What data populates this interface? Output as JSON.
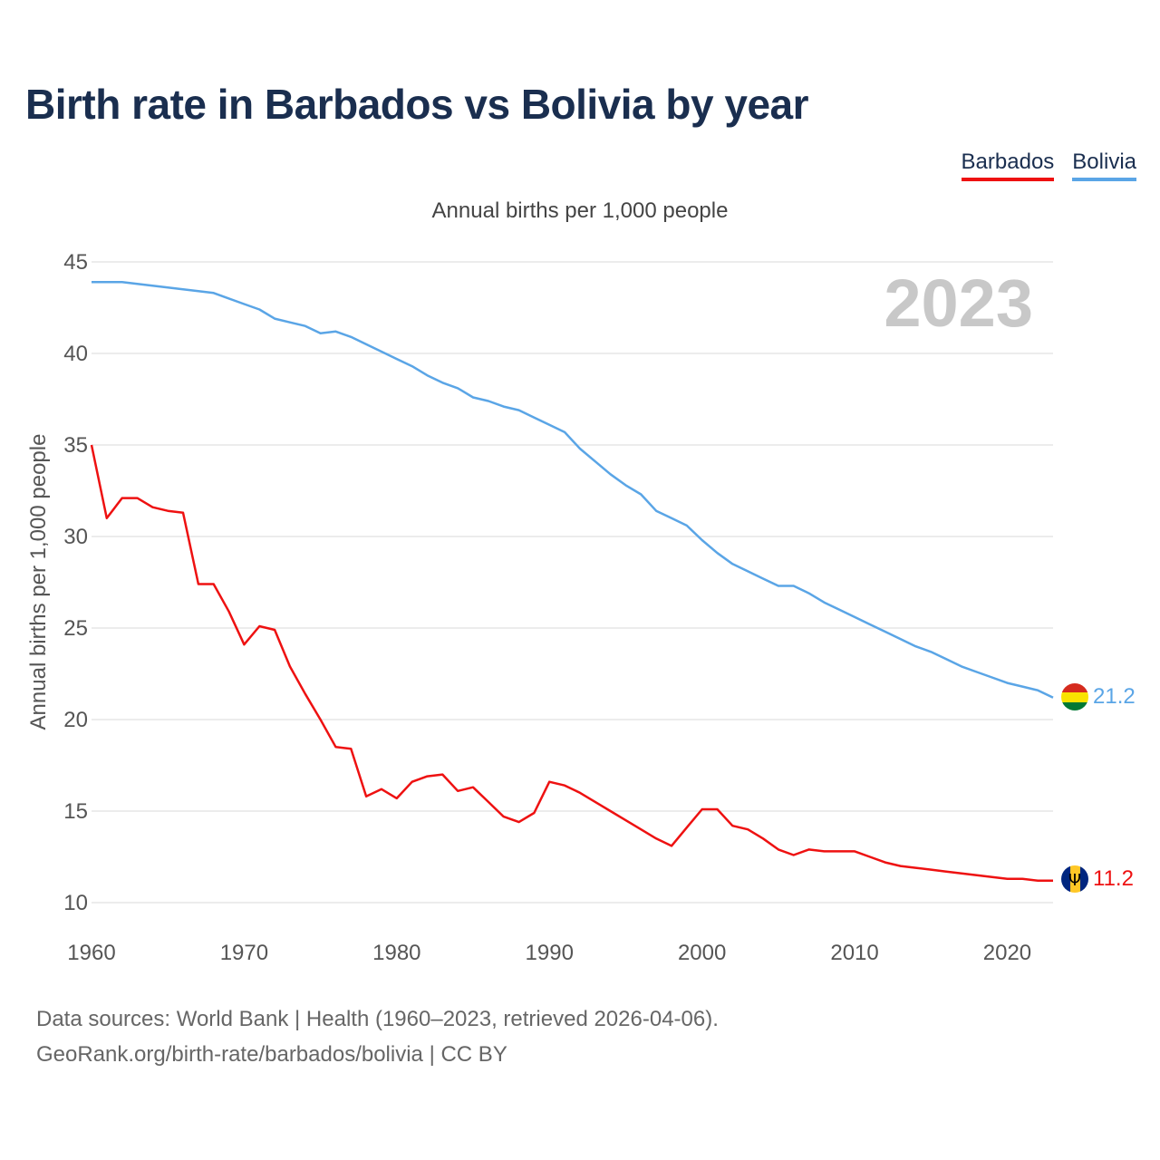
{
  "title": "Birth rate in Barbados vs Bolivia by year",
  "subtitle": "Annual births per 1,000 people",
  "year_watermark": "2023",
  "legend": [
    {
      "label": "Barbados",
      "color": "#ee1111"
    },
    {
      "label": "Bolivia",
      "color": "#5aa5e6"
    }
  ],
  "footer": {
    "line1": "Data sources: World Bank | Health (1960–2023, retrieved 2026-04-06).",
    "line2": "GeoRank.org/birth-rate/barbados/bolivia | CC BY"
  },
  "chart_data": {
    "type": "line",
    "title": "Birth rate in Barbados vs Bolivia by year",
    "xlabel": "",
    "ylabel": "Annual births per 1,000 people",
    "xlim": [
      1960,
      2023
    ],
    "ylim": [
      10,
      45
    ],
    "x_ticks": [
      1960,
      1970,
      1980,
      1990,
      2000,
      2010,
      2020
    ],
    "y_ticks": [
      10,
      15,
      20,
      25,
      30,
      35,
      40,
      45
    ],
    "grid": true,
    "legend_position": "top-right",
    "x": [
      1960,
      1961,
      1962,
      1963,
      1964,
      1965,
      1966,
      1967,
      1968,
      1969,
      1970,
      1971,
      1972,
      1973,
      1974,
      1975,
      1976,
      1977,
      1978,
      1979,
      1980,
      1981,
      1982,
      1983,
      1984,
      1985,
      1986,
      1987,
      1988,
      1989,
      1990,
      1991,
      1992,
      1993,
      1994,
      1995,
      1996,
      1997,
      1998,
      1999,
      2000,
      2001,
      2002,
      2003,
      2004,
      2005,
      2006,
      2007,
      2008,
      2009,
      2010,
      2011,
      2012,
      2013,
      2014,
      2015,
      2016,
      2017,
      2018,
      2019,
      2020,
      2021,
      2022,
      2023
    ],
    "series": [
      {
        "name": "Barbados",
        "color": "#ee1111",
        "end_label": "11.2",
        "values": [
          35.0,
          31.0,
          32.1,
          32.1,
          31.6,
          31.4,
          31.3,
          27.4,
          27.4,
          25.9,
          24.1,
          25.1,
          24.9,
          22.9,
          21.4,
          20.0,
          18.5,
          18.4,
          15.8,
          16.2,
          15.7,
          16.6,
          16.9,
          17.0,
          16.1,
          16.3,
          15.5,
          14.7,
          14.4,
          14.9,
          16.6,
          16.4,
          16.0,
          15.5,
          15.0,
          14.5,
          14.0,
          13.5,
          13.1,
          14.1,
          15.1,
          15.1,
          14.2,
          14.0,
          13.5,
          12.9,
          12.6,
          12.9,
          12.8,
          12.8,
          12.8,
          12.5,
          12.2,
          12.0,
          11.9,
          11.8,
          11.7,
          11.6,
          11.5,
          11.4,
          11.3,
          11.3,
          11.2,
          11.2
        ]
      },
      {
        "name": "Bolivia",
        "color": "#5aa5e6",
        "end_label": "21.2",
        "values": [
          43.9,
          43.9,
          43.9,
          43.8,
          43.7,
          43.6,
          43.5,
          43.4,
          43.3,
          43.0,
          42.7,
          42.4,
          41.9,
          41.7,
          41.5,
          41.1,
          41.2,
          40.9,
          40.5,
          40.1,
          39.7,
          39.3,
          38.8,
          38.4,
          38.1,
          37.6,
          37.4,
          37.1,
          36.9,
          36.5,
          36.1,
          35.7,
          34.8,
          34.1,
          33.4,
          32.8,
          32.3,
          31.4,
          31.0,
          30.6,
          29.8,
          29.1,
          28.5,
          28.1,
          27.7,
          27.3,
          27.3,
          26.9,
          26.4,
          26.0,
          25.6,
          25.2,
          24.8,
          24.4,
          24.0,
          23.7,
          23.3,
          22.9,
          22.6,
          22.3,
          22.0,
          21.8,
          21.6,
          21.2
        ]
      }
    ]
  }
}
